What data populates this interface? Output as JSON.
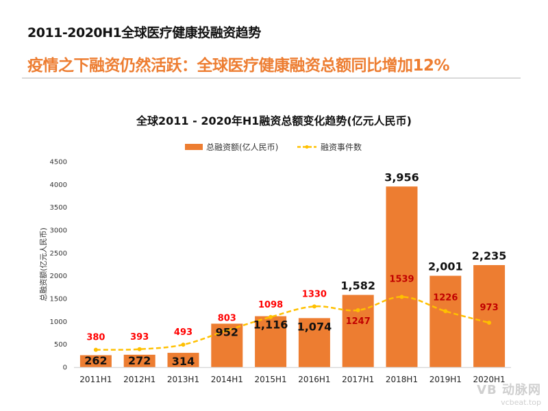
{
  "header": {
    "title": "2011-2020H1全球医疗健康投融资趋势",
    "subtitle": "疫情之下融资仍然活跃：全球医疗健康融资总额同比增加12%"
  },
  "watermark": {
    "logo_text": "VB 动脉网",
    "url": "vcbeat.top"
  },
  "colors": {
    "bar": "#ed7d31",
    "line": "#ffc000",
    "line_label": "#ff0000",
    "line_label_dark": "#c00000",
    "subtitle": "#ed7d31"
  },
  "chart_data": {
    "type": "bar",
    "title": "全球2011 - 2020年H1融资总额变化趋势(亿元人民币)",
    "xlabel": "",
    "ylabel": "总融资额(亿元人民币)",
    "ylim": [
      0,
      4500
    ],
    "yticks": [
      "0",
      "500",
      "1000",
      "1500",
      "2000",
      "2500",
      "3000",
      "3500",
      "4000",
      "4500"
    ],
    "grid": false,
    "legend_position": "top-center",
    "categories": [
      "2011H1",
      "2012H1",
      "2013H1",
      "2014H1",
      "2015H1",
      "2016H1",
      "2017H1",
      "2018H1",
      "2019H1",
      "2020H1"
    ],
    "series": [
      {
        "name": "总融资额(亿人民币)",
        "type": "bar",
        "values": [
          262,
          272,
          314,
          952,
          1116,
          1074,
          1582,
          3956,
          2001,
          2235
        ],
        "labels": [
          "262",
          "272",
          "314",
          "952",
          "1,116",
          "1,074",
          "1,582",
          "3,956",
          "2,001",
          "2,235"
        ]
      },
      {
        "name": "融资事件数",
        "type": "line",
        "style": "dashed",
        "values": [
          380,
          393,
          493,
          803,
          1098,
          1330,
          1247,
          1539,
          1226,
          973
        ],
        "labels": [
          "380",
          "393",
          "493",
          "803",
          "1098",
          "1330",
          "1247",
          "1539",
          "1226",
          "973"
        ]
      }
    ]
  }
}
